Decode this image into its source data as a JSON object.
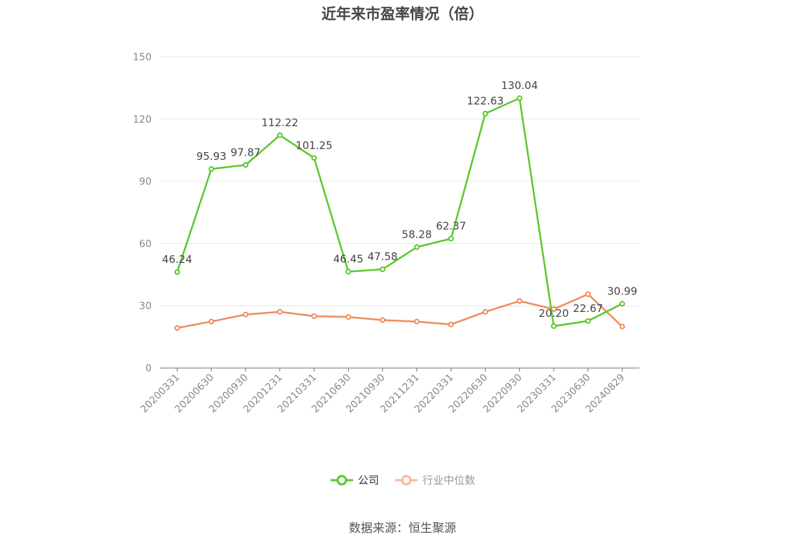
{
  "title": "近年来市盈率情况（倍）",
  "source": "数据来源：恒生聚源",
  "legend": {
    "company": "公司",
    "industry": "行业中位数"
  },
  "colors": {
    "company": "#5cc82a",
    "industry": "#f08b5c",
    "industry_legend": "#f6b8a0",
    "grid": "#e6e6e6",
    "axis": "#6e7079",
    "tick_label": "#888888",
    "data_label": "#444444"
  },
  "chart_data": {
    "type": "line",
    "title": "近年来市盈率情况（倍）",
    "xlabel": "",
    "ylabel": "",
    "ylim": [
      0,
      150
    ],
    "yticks": [
      0,
      30,
      60,
      90,
      120,
      150
    ],
    "categories": [
      "20200331",
      "20200630",
      "20200930",
      "20201231",
      "20210331",
      "20210630",
      "20210930",
      "20211231",
      "20220331",
      "20220630",
      "20220930",
      "20230331",
      "20230630",
      "20240829"
    ],
    "series": [
      {
        "name": "公司",
        "values": [
          46.24,
          95.93,
          97.87,
          112.22,
          101.25,
          46.45,
          47.58,
          58.28,
          62.37,
          122.63,
          130.04,
          20.2,
          22.67,
          30.99
        ],
        "labels": [
          "46.24",
          "95.93",
          "97.87",
          "112.22",
          "101.25",
          "46.45",
          "47.58",
          "58.28",
          "62.37",
          "122.63",
          "130.04",
          "20.20",
          "22.67",
          "30.99"
        ]
      },
      {
        "name": "行业中位数",
        "values": [
          19.3,
          22.4,
          25.8,
          27.1,
          25.0,
          24.6,
          23.1,
          22.4,
          21.0,
          27.1,
          32.3,
          28.4,
          35.6,
          20.0
        ]
      }
    ],
    "grid": true,
    "legend_position": "bottom"
  }
}
